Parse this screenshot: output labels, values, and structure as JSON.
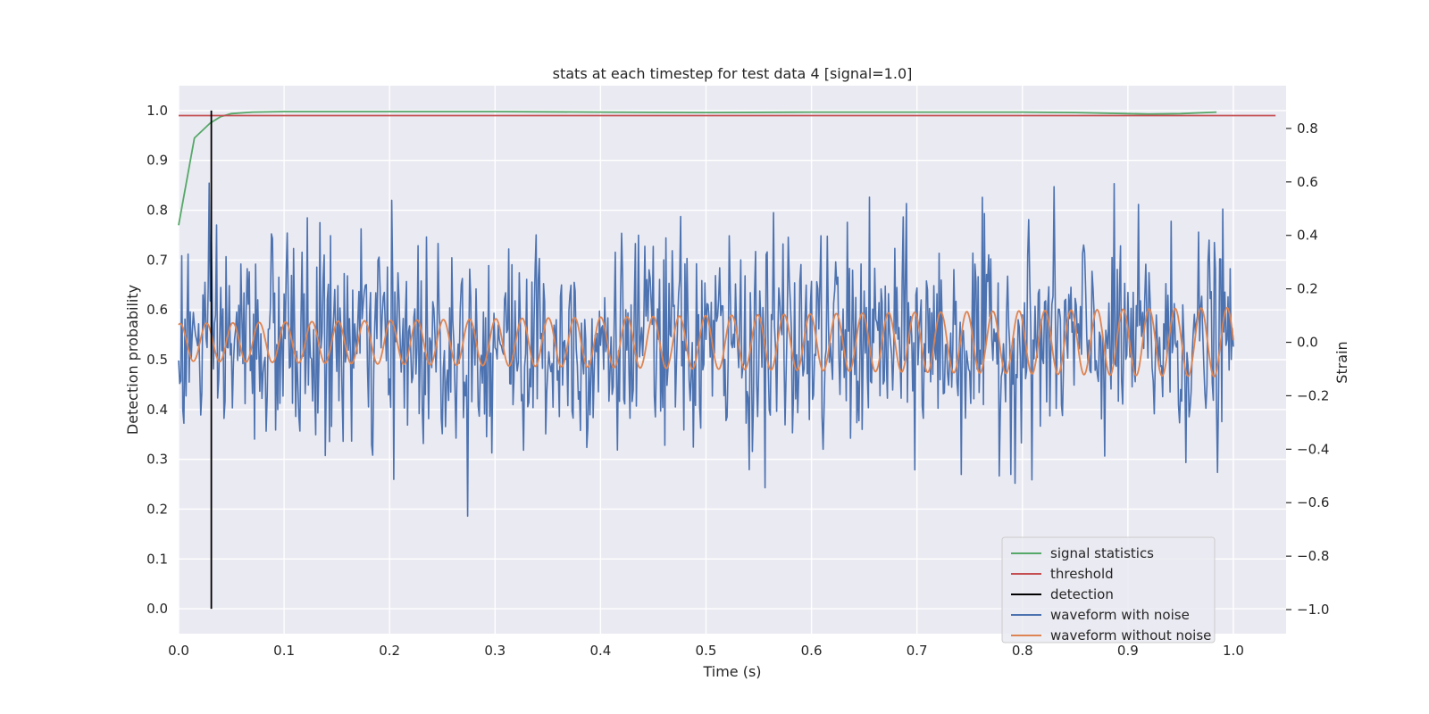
{
  "chart_data": {
    "type": "line",
    "title": "stats at each timestep for test data 4 [signal=1.0]",
    "xlabel": "Time (s)",
    "ylabel": "Detection probability",
    "y2label": "Strain",
    "xlim": [
      0.0,
      1.05
    ],
    "ylim": [
      -0.05,
      1.05
    ],
    "y2lim": [
      -1.09,
      0.96
    ],
    "xticks": [
      "0.0",
      "0.1",
      "0.2",
      "0.3",
      "0.4",
      "0.5",
      "0.6",
      "0.7",
      "0.8",
      "0.9",
      "1.0"
    ],
    "yticks": [
      "0.0",
      "0.1",
      "0.2",
      "0.3",
      "0.4",
      "0.5",
      "0.6",
      "0.7",
      "0.8",
      "0.9",
      "1.0"
    ],
    "y2ticks": [
      "−1.0",
      "−0.8",
      "−0.6",
      "−0.4",
      "−0.2",
      "0.0",
      "0.2",
      "0.4",
      "0.6",
      "0.8"
    ],
    "grid": true,
    "legend_position": "bottom-right",
    "legend": [
      {
        "label": "signal statistics",
        "color": "#55a868"
      },
      {
        "label": "threshold",
        "color": "#c44e52"
      },
      {
        "label": "detection",
        "color": "#000000"
      },
      {
        "label": "waveform with noise",
        "color": "#4c72b0"
      },
      {
        "label": "waveform without noise",
        "color": "#dd8452"
      }
    ],
    "series": [
      {
        "name": "signal statistics",
        "axis": "left",
        "color": "#55a868",
        "x": [
          0.0,
          0.015,
          0.03,
          0.04,
          0.05,
          0.07,
          0.1,
          0.2,
          0.3,
          0.4,
          0.5,
          0.6,
          0.7,
          0.8,
          0.85,
          0.9,
          0.92,
          0.95,
          0.984
        ],
        "y": [
          0.77,
          0.945,
          0.975,
          0.988,
          0.994,
          0.997,
          0.998,
          0.998,
          0.998,
          0.997,
          0.996,
          0.997,
          0.997,
          0.997,
          0.996,
          0.994,
          0.993,
          0.994,
          0.997
        ]
      },
      {
        "name": "threshold",
        "axis": "left",
        "color": "#c44e52",
        "x": [
          0.0,
          1.04
        ],
        "y": [
          0.99,
          0.99
        ]
      },
      {
        "name": "detection",
        "axis": "left",
        "color": "#000000",
        "x": [
          0.031,
          0.031
        ],
        "y": [
          0.0,
          1.0
        ]
      },
      {
        "name": "waveform with noise",
        "axis": "right",
        "color": "#4c72b0",
        "x_start": 0.0,
        "x_end": 1.0,
        "amplitude_std": 0.2,
        "points": 1000
      },
      {
        "name": "waveform without noise",
        "axis": "right",
        "color": "#dd8452",
        "x_start": 0.0,
        "x_end": 1.0,
        "cycles": 40,
        "amplitude_start": 0.07,
        "amplitude_end": 0.13
      }
    ]
  }
}
